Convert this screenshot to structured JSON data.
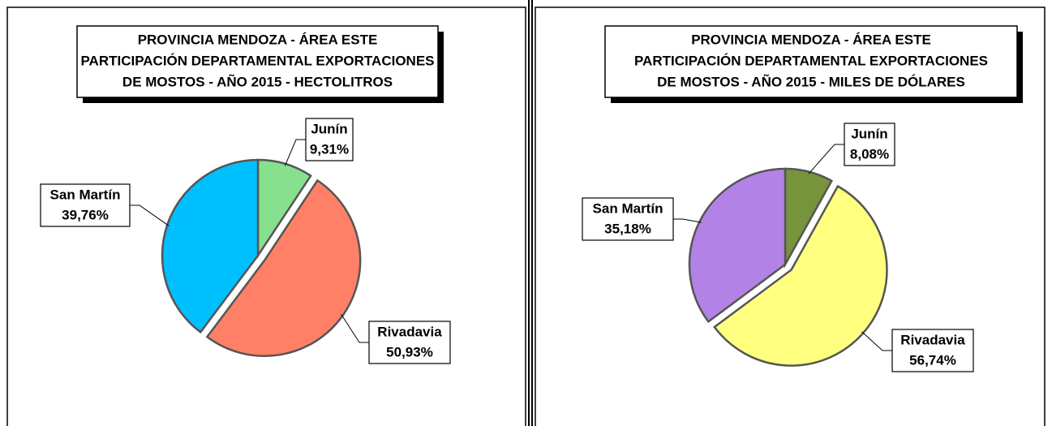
{
  "chart_data": [
    {
      "type": "pie",
      "title": [
        "PROVINCIA MENDOZA - ÁREA ESTE",
        "PARTICIPACIÓN DEPARTAMENTAL EXPORTACIONES",
        "DE MOSTOS - AÑO 2015 - HECTOLITROS"
      ],
      "categories": [
        "Junín",
        "Rivadavia",
        "San Martín"
      ],
      "values": [
        9.31,
        50.93,
        39.76
      ],
      "value_labels": [
        "9,31%",
        "50,93%",
        "39,76%"
      ],
      "colors": [
        "#86e08e",
        "#ff8066",
        "#00bfff"
      ]
    },
    {
      "type": "pie",
      "title": [
        "PROVINCIA MENDOZA - ÁREA ESTE",
        "PARTICIPACIÓN DEPARTAMENTAL EXPORTACIONES",
        "DE MOSTOS - AÑO 2015 - MILES DE DÓLARES"
      ],
      "categories": [
        "Junín",
        "Rivadavia",
        "San Martín"
      ],
      "values": [
        8.08,
        56.74,
        35.18
      ],
      "value_labels": [
        "8,08%",
        "56,74%",
        "35,18%"
      ],
      "colors": [
        "#77933c",
        "#ffff80",
        "#b382e6"
      ]
    }
  ]
}
